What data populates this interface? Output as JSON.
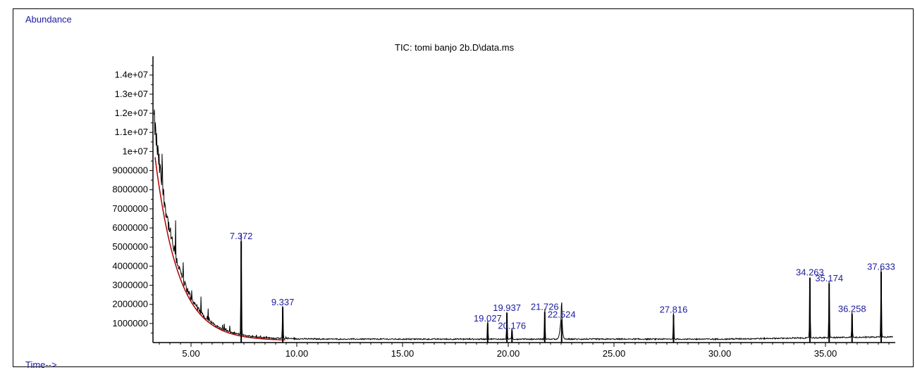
{
  "chart_data": {
    "type": "line",
    "title": "TIC: tomi banjo 2b.D\\data.ms",
    "ylabel": "Abundance",
    "xlabel": "Time-->",
    "xlim": [
      3.2,
      38.3
    ],
    "ylim": [
      0,
      14800000
    ],
    "x_ticks": [
      5,
      10,
      15,
      20,
      25,
      30,
      35
    ],
    "x_tick_labels": [
      "5.00",
      "10.00",
      "15.00",
      "20.00",
      "25.00",
      "30.00",
      "35.00"
    ],
    "y_ticks": [
      1000000,
      2000000,
      3000000,
      4000000,
      5000000,
      6000000,
      7000000,
      8000000,
      9000000,
      10000000,
      11000000,
      12000000,
      13000000,
      14000000
    ],
    "y_tick_labels": [
      "1000000",
      "2000000",
      "3000000",
      "4000000",
      "5000000",
      "6000000",
      "7000000",
      "8000000",
      "9000000",
      "1e+07",
      "1.1e+07",
      "1.2e+07",
      "1.3e+07",
      "1.4e+07"
    ],
    "peaks": [
      {
        "rt": 7.372,
        "label": "7.372",
        "abundance": 5300000
      },
      {
        "rt": 9.337,
        "label": "9.337",
        "abundance": 1850000
      },
      {
        "rt": 19.937,
        "label": "19.937",
        "abundance": 1550000
      },
      {
        "rt": 19.027,
        "label": "19.027",
        "abundance": 1000000
      },
      {
        "rt": 20.176,
        "label": "20.176",
        "abundance": 600000
      },
      {
        "rt": 21.726,
        "label": "21.726",
        "abundance": 1600000
      },
      {
        "rt": 22.524,
        "label": "22.524",
        "abundance": 1200000
      },
      {
        "rt": 27.816,
        "label": "27.816",
        "abundance": 1450000
      },
      {
        "rt": 34.263,
        "label": "34.263",
        "abundance": 3400000
      },
      {
        "rt": 35.174,
        "label": "35.174",
        "abundance": 3100000
      },
      {
        "rt": 36.258,
        "label": "36.258",
        "abundance": 1500000
      },
      {
        "rt": 37.633,
        "label": "37.633",
        "abundance": 3700000
      }
    ]
  }
}
